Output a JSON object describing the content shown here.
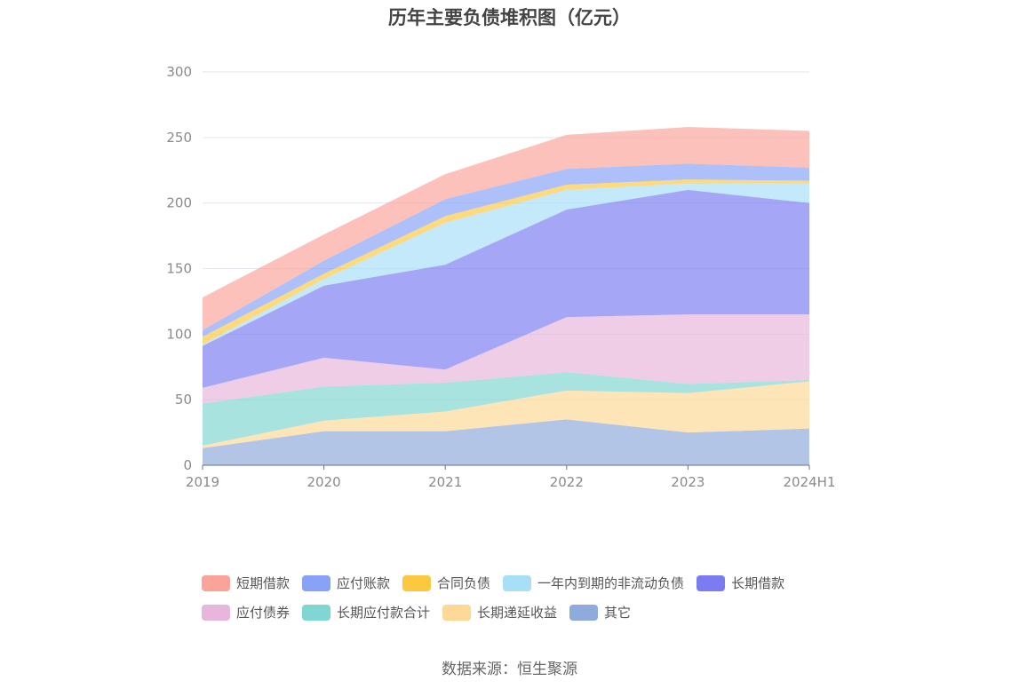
{
  "chart_data": {
    "type": "area",
    "stacked": true,
    "title": "历年主要负债堆积图（亿元）",
    "source": "数据来源：恒生聚源",
    "categories": [
      "2019",
      "2020",
      "2021",
      "2022",
      "2023",
      "2024H1"
    ],
    "ylim": [
      0,
      300
    ],
    "yticks": [
      "0",
      "50",
      "100",
      "150",
      "200",
      "250",
      "300"
    ],
    "grid": true,
    "legend_position": "bottom",
    "series": [
      {
        "name": "其它",
        "color": "#8faadc",
        "values": [
          13,
          26,
          26,
          35,
          25,
          28
        ]
      },
      {
        "name": "长期递延收益",
        "color": "#fdd896",
        "values": [
          2,
          8,
          15,
          22,
          30,
          36
        ]
      },
      {
        "name": "长期应付款合计",
        "color": "#7fd6d2",
        "values": [
          32,
          26,
          22,
          14,
          7,
          1
        ]
      },
      {
        "name": "应付债券",
        "color": "#e8b6dc",
        "values": [
          12,
          22,
          10,
          42,
          53,
          50
        ]
      },
      {
        "name": "长期借款",
        "color": "#7b7cf0",
        "values": [
          32,
          55,
          80,
          82,
          95,
          85
        ]
      },
      {
        "name": "一年内到期的非流动负债",
        "color": "#a7dff7",
        "values": [
          1,
          5,
          32,
          15,
          5,
          15
        ]
      },
      {
        "name": "合同负债",
        "color": "#fdc841",
        "values": [
          6,
          4,
          5,
          4,
          3,
          2
        ]
      },
      {
        "name": "应付账款",
        "color": "#87a2f7",
        "values": [
          5,
          10,
          13,
          12,
          12,
          10
        ]
      },
      {
        "name": "短期借款",
        "color": "#f9a399",
        "values": [
          25,
          20,
          19,
          26,
          28,
          28
        ]
      }
    ],
    "legend_rows": [
      [
        "短期借款",
        "应付账款",
        "合同负债",
        "一年内到期的非流动负债",
        "长期借款"
      ],
      [
        "应付债券",
        "长期应付款合计",
        "长期递延收益",
        "其它"
      ]
    ]
  }
}
